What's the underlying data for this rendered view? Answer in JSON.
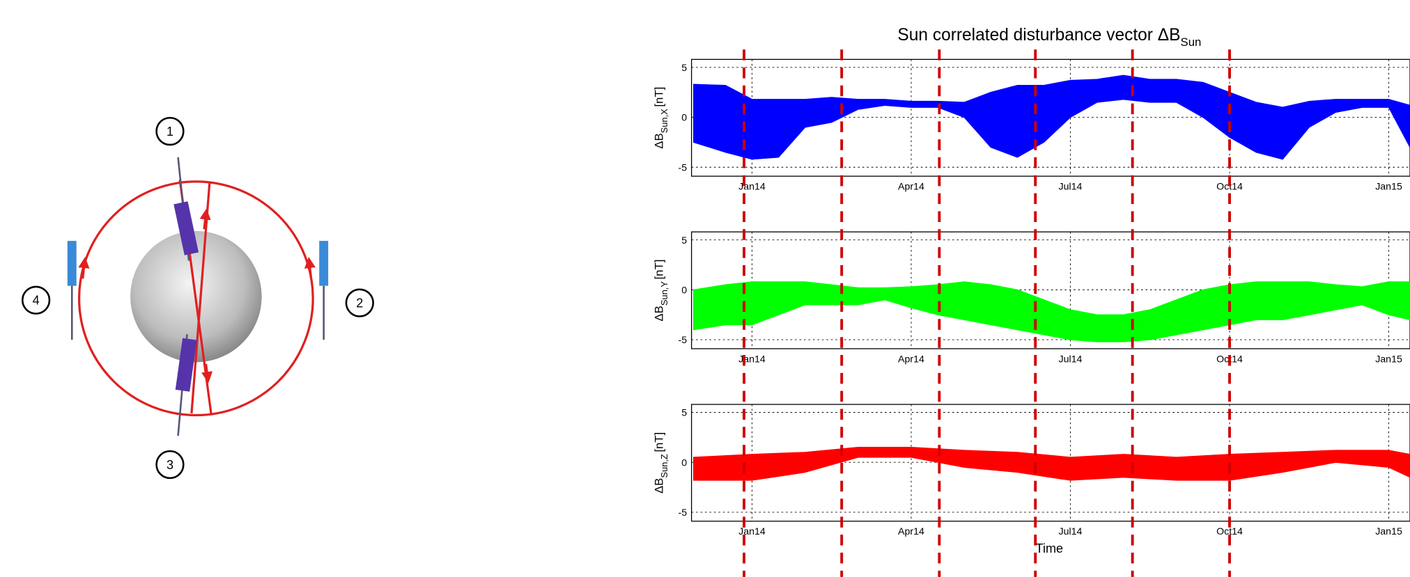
{
  "figure_title": "Sun correlated disturbance vector ΔB",
  "figure_title_subscript": "Sun",
  "event_lines": {
    "color": "#cc0000",
    "values": [
      -0.15,
      1.69,
      3.53,
      5.34,
      7.17,
      9.0
    ]
  },
  "diagram": {
    "labels": [
      "1",
      "2",
      "3",
      "4"
    ]
  },
  "chart_data": [
    {
      "type": "band",
      "ylabel": "ΔB",
      "ylabel_subscript": "Sun,X",
      "ylabel_unit": "[nT]",
      "color": "#0000ff",
      "xlim": [
        -1.14,
        12.4
      ],
      "ylim": [
        -5.9,
        5.8
      ],
      "yticks": [
        -5,
        0,
        5
      ],
      "xticks": [
        {
          "value": 0,
          "label": "Jan14"
        },
        {
          "value": 3,
          "label": "Apr14"
        },
        {
          "value": 6,
          "label": "Jul14"
        },
        {
          "value": 9,
          "label": "Oct14"
        },
        {
          "value": 12,
          "label": "Jan15"
        }
      ],
      "grid": true,
      "x": [
        -1.1,
        -0.5,
        0,
        0.5,
        1,
        1.5,
        2,
        2.5,
        3,
        3.5,
        4,
        4.5,
        5,
        5.5,
        6,
        6.5,
        7,
        7.5,
        8,
        8.5,
        9,
        9.5,
        10,
        10.5,
        11,
        11.5,
        12,
        12.4
      ],
      "upper": [
        3.3,
        3.2,
        1.8,
        1.8,
        1.8,
        2,
        1.8,
        1.8,
        1.6,
        1.6,
        1.5,
        2.5,
        3.2,
        3.2,
        3.7,
        3.8,
        4.2,
        3.8,
        3.8,
        3.5,
        2.5,
        1.5,
        1,
        1.6,
        1.8,
        1.8,
        1.8,
        1.2
      ],
      "lower": [
        -2.5,
        -3.5,
        -4.2,
        -4,
        -1,
        -0.5,
        0.8,
        1.2,
        1,
        1,
        0,
        -3,
        -4,
        -2.5,
        0,
        1.5,
        1.8,
        1.5,
        1.5,
        0,
        -2,
        -3.5,
        -4.2,
        -1,
        0.5,
        1,
        1,
        -3
      ]
    },
    {
      "type": "band",
      "ylabel": "ΔB",
      "ylabel_subscript": "Sun,Y",
      "ylabel_unit": "[nT]",
      "color": "#00ff00",
      "xlim": [
        -1.14,
        12.4
      ],
      "ylim": [
        -5.9,
        5.8
      ],
      "yticks": [
        -5,
        0,
        5
      ],
      "xticks": [
        {
          "value": 0,
          "label": "Jan14"
        },
        {
          "value": 3,
          "label": "Apr14"
        },
        {
          "value": 6,
          "label": "Jul14"
        },
        {
          "value": 9,
          "label": "Oct14"
        },
        {
          "value": 12,
          "label": "Jan15"
        }
      ],
      "grid": true,
      "x": [
        -1.1,
        -0.5,
        0,
        0.5,
        1,
        1.5,
        2,
        2.5,
        3,
        3.5,
        4,
        4.5,
        5,
        5.5,
        6,
        6.5,
        7,
        7.5,
        8,
        8.5,
        9,
        9.5,
        10,
        10.5,
        11,
        11.5,
        12,
        12.4
      ],
      "upper": [
        0,
        0.5,
        0.8,
        0.8,
        0.8,
        0.5,
        0.2,
        0.2,
        0.3,
        0.5,
        0.8,
        0.5,
        0,
        -1,
        -2,
        -2.5,
        -2.5,
        -2,
        -1,
        0,
        0.5,
        0.8,
        0.8,
        0.8,
        0.5,
        0.3,
        0.8,
        0.8
      ],
      "lower": [
        -4,
        -3.5,
        -3.5,
        -2.5,
        -1.5,
        -1.5,
        -1.5,
        -1,
        -1.8,
        -2.5,
        -3,
        -3.5,
        -4,
        -4.5,
        -5,
        -5.2,
        -5.2,
        -5,
        -4.5,
        -4,
        -3.5,
        -3,
        -3,
        -2.5,
        -2,
        -1.5,
        -2.5,
        -3
      ]
    },
    {
      "type": "band",
      "ylabel": "ΔB",
      "ylabel_subscript": "Sun,Z",
      "ylabel_unit": "[nT]",
      "color": "#ff0000",
      "xlim": [
        -1.14,
        12.4
      ],
      "ylim": [
        -5.9,
        5.8
      ],
      "yticks": [
        -5,
        0,
        5
      ],
      "xticks": [
        {
          "value": 0,
          "label": "Jan14"
        },
        {
          "value": 3,
          "label": "Apr14"
        },
        {
          "value": 6,
          "label": "Jul14"
        },
        {
          "value": 9,
          "label": "Oct14"
        },
        {
          "value": 12,
          "label": "Jan15"
        }
      ],
      "grid": true,
      "xlabel": "Time",
      "x": [
        -1.1,
        0,
        1,
        2,
        3,
        4,
        5,
        6,
        7,
        8,
        9,
        10,
        11,
        12,
        12.4
      ],
      "upper": [
        0.5,
        0.8,
        1,
        1.5,
        1.5,
        1.2,
        1,
        0.5,
        0.8,
        0.5,
        0.8,
        1,
        1.2,
        1.2,
        0.8
      ],
      "lower": [
        -1.8,
        -1.8,
        -1,
        0.5,
        0.5,
        -0.5,
        -1,
        -1.8,
        -1.5,
        -1.8,
        -1.8,
        -1,
        0,
        -0.5,
        -1.5
      ]
    }
  ]
}
